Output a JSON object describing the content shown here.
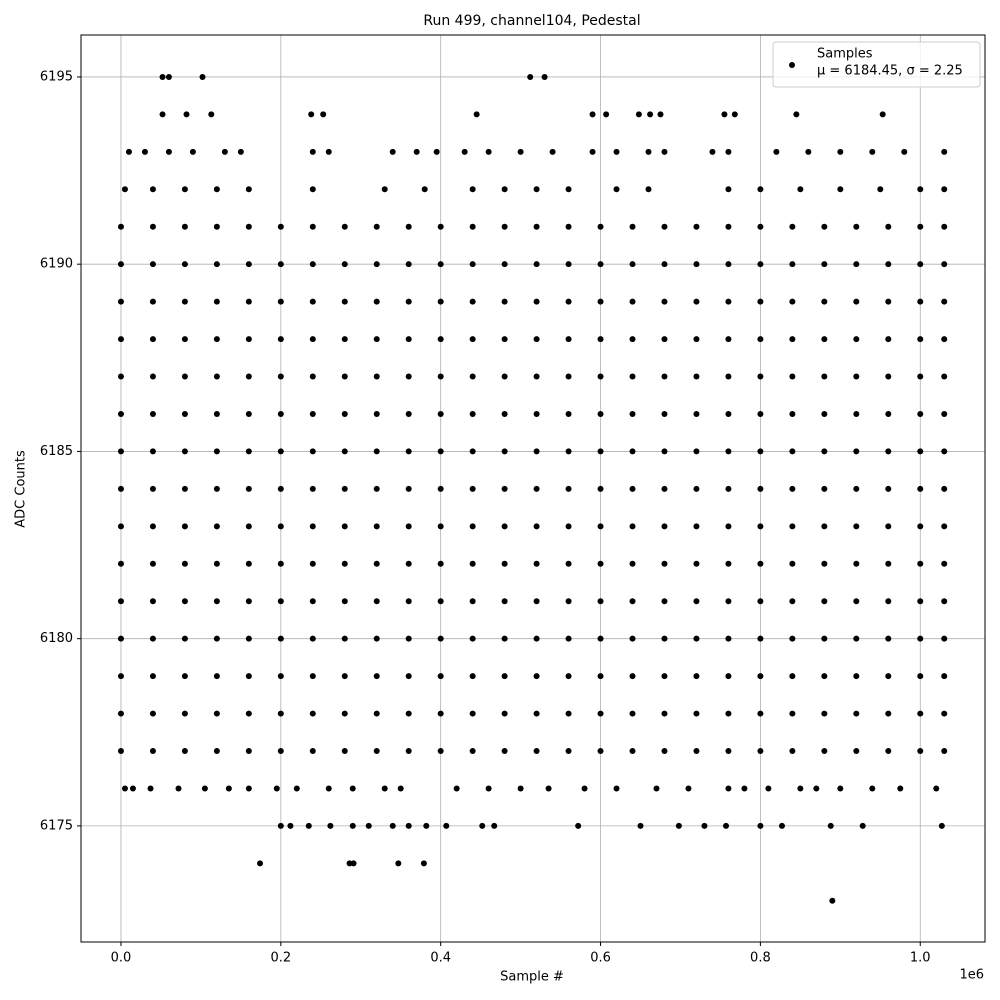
{
  "chart_data": {
    "type": "scatter",
    "title": "Run 499, channel104, Pedestal",
    "x_label": "Sample #",
    "y_label": "ADC Counts",
    "x_offset_label": "1e6",
    "legend_note": "μ = 6184.45, σ = 2.25",
    "legend_position": "upper right",
    "grid": true,
    "xlim": [
      -50000,
      1081000
    ],
    "ylim": [
      6171.9,
      6196.12
    ],
    "xticks": [
      {
        "value": 0,
        "label": "0.0"
      },
      {
        "value": 200000,
        "label": "0.2"
      },
      {
        "value": 400000,
        "label": "0.4"
      },
      {
        "value": 600000,
        "label": "0.6"
      },
      {
        "value": 800000,
        "label": "0.8"
      },
      {
        "value": 1000000,
        "label": "1.0"
      }
    ],
    "yticks": [
      6175,
      6180,
      6185,
      6190,
      6195
    ],
    "series": [
      {
        "name": "Samples",
        "color": "#000000",
        "x": [
          0,
          40000,
          80000,
          120000,
          160000,
          200000,
          240000,
          280000,
          320000,
          360000,
          400000,
          440000,
          480000,
          520000,
          560000,
          600000,
          640000,
          680000,
          720000,
          760000,
          800000,
          840000,
          880000,
          920000,
          960000,
          1000000,
          1030000,
          0,
          40000,
          80000,
          120000,
          160000,
          200000,
          240000,
          280000,
          320000,
          360000,
          400000,
          440000,
          480000,
          520000,
          560000,
          600000,
          640000,
          680000,
          720000,
          760000,
          800000,
          840000,
          880000,
          920000,
          960000,
          1000000,
          1030000,
          0,
          40000,
          80000,
          120000,
          160000,
          200000,
          240000,
          280000,
          320000,
          360000,
          400000,
          440000,
          480000,
          520000,
          560000,
          600000,
          640000,
          680000,
          720000,
          760000,
          800000,
          840000,
          880000,
          920000,
          960000,
          1000000,
          1030000,
          0,
          40000,
          80000,
          120000,
          160000,
          200000,
          240000,
          280000,
          320000,
          360000,
          400000,
          440000,
          480000,
          520000,
          560000,
          600000,
          640000,
          680000,
          720000,
          760000,
          800000,
          840000,
          880000,
          920000,
          960000,
          1000000,
          1030000,
          0,
          40000,
          80000,
          120000,
          160000,
          200000,
          240000,
          280000,
          320000,
          360000,
          400000,
          440000,
          480000,
          520000,
          560000,
          600000,
          640000,
          680000,
          720000,
          760000,
          800000,
          840000,
          880000,
          920000,
          960000,
          1000000,
          1030000,
          0,
          40000,
          80000,
          120000,
          160000,
          200000,
          240000,
          280000,
          320000,
          360000,
          400000,
          440000,
          480000,
          520000,
          560000,
          600000,
          640000,
          680000,
          720000,
          760000,
          800000,
          840000,
          880000,
          920000,
          960000,
          1000000,
          1030000,
          0,
          40000,
          80000,
          120000,
          160000,
          200000,
          240000,
          280000,
          320000,
          360000,
          400000,
          440000,
          480000,
          520000,
          560000,
          600000,
          640000,
          680000,
          720000,
          760000,
          800000,
          840000,
          880000,
          920000,
          960000,
          1000000,
          1030000,
          0,
          40000,
          80000,
          120000,
          160000,
          200000,
          240000,
          280000,
          320000,
          360000,
          400000,
          440000,
          480000,
          520000,
          560000,
          600000,
          640000,
          680000,
          720000,
          760000,
          800000,
          840000,
          880000,
          920000,
          960000,
          1000000,
          1030000,
          0,
          40000,
          80000,
          120000,
          160000,
          200000,
          240000,
          280000,
          320000,
          360000,
          400000,
          440000,
          480000,
          520000,
          560000,
          600000,
          640000,
          680000,
          720000,
          760000,
          800000,
          840000,
          880000,
          920000,
          960000,
          1000000,
          1030000,
          0,
          40000,
          80000,
          120000,
          160000,
          200000,
          240000,
          280000,
          320000,
          360000,
          400000,
          440000,
          480000,
          520000,
          560000,
          600000,
          640000,
          680000,
          720000,
          760000,
          800000,
          840000,
          880000,
          920000,
          960000,
          1000000,
          1030000,
          0,
          40000,
          80000,
          120000,
          160000,
          200000,
          240000,
          280000,
          320000,
          360000,
          400000,
          440000,
          480000,
          520000,
          560000,
          600000,
          640000,
          680000,
          720000,
          760000,
          800000,
          840000,
          880000,
          920000,
          960000,
          1000000,
          1030000,
          0,
          40000,
          80000,
          120000,
          160000,
          200000,
          240000,
          280000,
          320000,
          360000,
          400000,
          440000,
          480000,
          520000,
          560000,
          600000,
          640000,
          680000,
          720000,
          760000,
          800000,
          840000,
          880000,
          920000,
          960000,
          1000000,
          1030000,
          0,
          40000,
          80000,
          120000,
          160000,
          200000,
          240000,
          280000,
          320000,
          360000,
          400000,
          440000,
          480000,
          520000,
          560000,
          600000,
          640000,
          680000,
          720000,
          760000,
          800000,
          840000,
          880000,
          920000,
          960000,
          1000000,
          1030000,
          0,
          40000,
          80000,
          120000,
          160000,
          200000,
          240000,
          280000,
          320000,
          360000,
          400000,
          440000,
          480000,
          520000,
          560000,
          600000,
          640000,
          680000,
          720000,
          760000,
          800000,
          840000,
          880000,
          920000,
          960000,
          1000000,
          1030000,
          0,
          40000,
          80000,
          120000,
          160000,
          200000,
          240000,
          280000,
          320000,
          360000,
          400000,
          440000,
          480000,
          520000,
          560000,
          600000,
          640000,
          680000,
          720000,
          760000,
          800000,
          840000,
          880000,
          920000,
          960000,
          1000000,
          1030000,
          5000,
          40000,
          80000,
          120000,
          160000,
          240000,
          330000,
          380000,
          440000,
          480000,
          520000,
          560000,
          620000,
          660000,
          760000,
          800000,
          850000,
          900000,
          950000,
          1000000,
          1030000,
          10000,
          30000,
          60000,
          90000,
          130000,
          150000,
          240000,
          260000,
          340000,
          370000,
          395000,
          430000,
          460000,
          500000,
          540000,
          590000,
          620000,
          660000,
          680000,
          740000,
          760000,
          820000,
          860000,
          900000,
          940000,
          980000,
          1030000,
          52000,
          82000,
          113000,
          238000,
          253000,
          445000,
          590000,
          607000,
          648000,
          662000,
          675000,
          755000,
          768000,
          845000,
          953000,
          52000,
          60000,
          102000,
          512000,
          530000,
          5000,
          15000,
          37000,
          72000,
          105000,
          135000,
          160000,
          195000,
          220000,
          260000,
          290000,
          330000,
          350000,
          420000,
          460000,
          500000,
          535000,
          580000,
          620000,
          670000,
          710000,
          760000,
          780000,
          810000,
          850000,
          870000,
          900000,
          940000,
          975000,
          1020000,
          200000,
          212000,
          235000,
          262000,
          290000,
          310000,
          340000,
          360000,
          382000,
          407000,
          452000,
          467000,
          572000,
          650000,
          698000,
          730000,
          757000,
          800000,
          827000,
          888000,
          928000,
          1027000,
          174000,
          286000,
          291000,
          347000,
          379000,
          890000
        ],
        "values": [
          6177,
          6177,
          6177,
          6177,
          6177,
          6177,
          6177,
          6177,
          6177,
          6177,
          6177,
          6177,
          6177,
          6177,
          6177,
          6177,
          6177,
          6177,
          6177,
          6177,
          6177,
          6177,
          6177,
          6177,
          6177,
          6177,
          6177,
          6178,
          6178,
          6178,
          6178,
          6178,
          6178,
          6178,
          6178,
          6178,
          6178,
          6178,
          6178,
          6178,
          6178,
          6178,
          6178,
          6178,
          6178,
          6178,
          6178,
          6178,
          6178,
          6178,
          6178,
          6178,
          6178,
          6178,
          6179,
          6179,
          6179,
          6179,
          6179,
          6179,
          6179,
          6179,
          6179,
          6179,
          6179,
          6179,
          6179,
          6179,
          6179,
          6179,
          6179,
          6179,
          6179,
          6179,
          6179,
          6179,
          6179,
          6179,
          6179,
          6179,
          6179,
          6180,
          6180,
          6180,
          6180,
          6180,
          6180,
          6180,
          6180,
          6180,
          6180,
          6180,
          6180,
          6180,
          6180,
          6180,
          6180,
          6180,
          6180,
          6180,
          6180,
          6180,
          6180,
          6180,
          6180,
          6180,
          6180,
          6180,
          6181,
          6181,
          6181,
          6181,
          6181,
          6181,
          6181,
          6181,
          6181,
          6181,
          6181,
          6181,
          6181,
          6181,
          6181,
          6181,
          6181,
          6181,
          6181,
          6181,
          6181,
          6181,
          6181,
          6181,
          6181,
          6181,
          6181,
          6182,
          6182,
          6182,
          6182,
          6182,
          6182,
          6182,
          6182,
          6182,
          6182,
          6182,
          6182,
          6182,
          6182,
          6182,
          6182,
          6182,
          6182,
          6182,
          6182,
          6182,
          6182,
          6182,
          6182,
          6182,
          6182,
          6182,
          6183,
          6183,
          6183,
          6183,
          6183,
          6183,
          6183,
          6183,
          6183,
          6183,
          6183,
          6183,
          6183,
          6183,
          6183,
          6183,
          6183,
          6183,
          6183,
          6183,
          6183,
          6183,
          6183,
          6183,
          6183,
          6183,
          6183,
          6184,
          6184,
          6184,
          6184,
          6184,
          6184,
          6184,
          6184,
          6184,
          6184,
          6184,
          6184,
          6184,
          6184,
          6184,
          6184,
          6184,
          6184,
          6184,
          6184,
          6184,
          6184,
          6184,
          6184,
          6184,
          6184,
          6184,
          6185,
          6185,
          6185,
          6185,
          6185,
          6185,
          6185,
          6185,
          6185,
          6185,
          6185,
          6185,
          6185,
          6185,
          6185,
          6185,
          6185,
          6185,
          6185,
          6185,
          6185,
          6185,
          6185,
          6185,
          6185,
          6185,
          6185,
          6186,
          6186,
          6186,
          6186,
          6186,
          6186,
          6186,
          6186,
          6186,
          6186,
          6186,
          6186,
          6186,
          6186,
          6186,
          6186,
          6186,
          6186,
          6186,
          6186,
          6186,
          6186,
          6186,
          6186,
          6186,
          6186,
          6186,
          6187,
          6187,
          6187,
          6187,
          6187,
          6187,
          6187,
          6187,
          6187,
          6187,
          6187,
          6187,
          6187,
          6187,
          6187,
          6187,
          6187,
          6187,
          6187,
          6187,
          6187,
          6187,
          6187,
          6187,
          6187,
          6187,
          6187,
          6188,
          6188,
          6188,
          6188,
          6188,
          6188,
          6188,
          6188,
          6188,
          6188,
          6188,
          6188,
          6188,
          6188,
          6188,
          6188,
          6188,
          6188,
          6188,
          6188,
          6188,
          6188,
          6188,
          6188,
          6188,
          6188,
          6188,
          6189,
          6189,
          6189,
          6189,
          6189,
          6189,
          6189,
          6189,
          6189,
          6189,
          6189,
          6189,
          6189,
          6189,
          6189,
          6189,
          6189,
          6189,
          6189,
          6189,
          6189,
          6189,
          6189,
          6189,
          6189,
          6189,
          6189,
          6190,
          6190,
          6190,
          6190,
          6190,
          6190,
          6190,
          6190,
          6190,
          6190,
          6190,
          6190,
          6190,
          6190,
          6190,
          6190,
          6190,
          6190,
          6190,
          6190,
          6190,
          6190,
          6190,
          6190,
          6190,
          6190,
          6190,
          6191,
          6191,
          6191,
          6191,
          6191,
          6191,
          6191,
          6191,
          6191,
          6191,
          6191,
          6191,
          6191,
          6191,
          6191,
          6191,
          6191,
          6191,
          6191,
          6191,
          6191,
          6191,
          6191,
          6191,
          6191,
          6191,
          6191,
          6192,
          6192,
          6192,
          6192,
          6192,
          6192,
          6192,
          6192,
          6192,
          6192,
          6192,
          6192,
          6192,
          6192,
          6192,
          6192,
          6192,
          6192,
          6192,
          6192,
          6192,
          6193,
          6193,
          6193,
          6193,
          6193,
          6193,
          6193,
          6193,
          6193,
          6193,
          6193,
          6193,
          6193,
          6193,
          6193,
          6193,
          6193,
          6193,
          6193,
          6193,
          6193,
          6193,
          6193,
          6193,
          6193,
          6193,
          6193,
          6194,
          6194,
          6194,
          6194,
          6194,
          6194,
          6194,
          6194,
          6194,
          6194,
          6194,
          6194,
          6194,
          6194,
          6194,
          6195,
          6195,
          6195,
          6195,
          6195,
          6176,
          6176,
          6176,
          6176,
          6176,
          6176,
          6176,
          6176,
          6176,
          6176,
          6176,
          6176,
          6176,
          6176,
          6176,
          6176,
          6176,
          6176,
          6176,
          6176,
          6176,
          6176,
          6176,
          6176,
          6176,
          6176,
          6176,
          6176,
          6176,
          6176,
          6175,
          6175,
          6175,
          6175,
          6175,
          6175,
          6175,
          6175,
          6175,
          6175,
          6175,
          6175,
          6175,
          6175,
          6175,
          6175,
          6175,
          6175,
          6175,
          6175,
          6175,
          6175,
          6174,
          6174,
          6174,
          6174,
          6174,
          6173
        ]
      }
    ]
  }
}
